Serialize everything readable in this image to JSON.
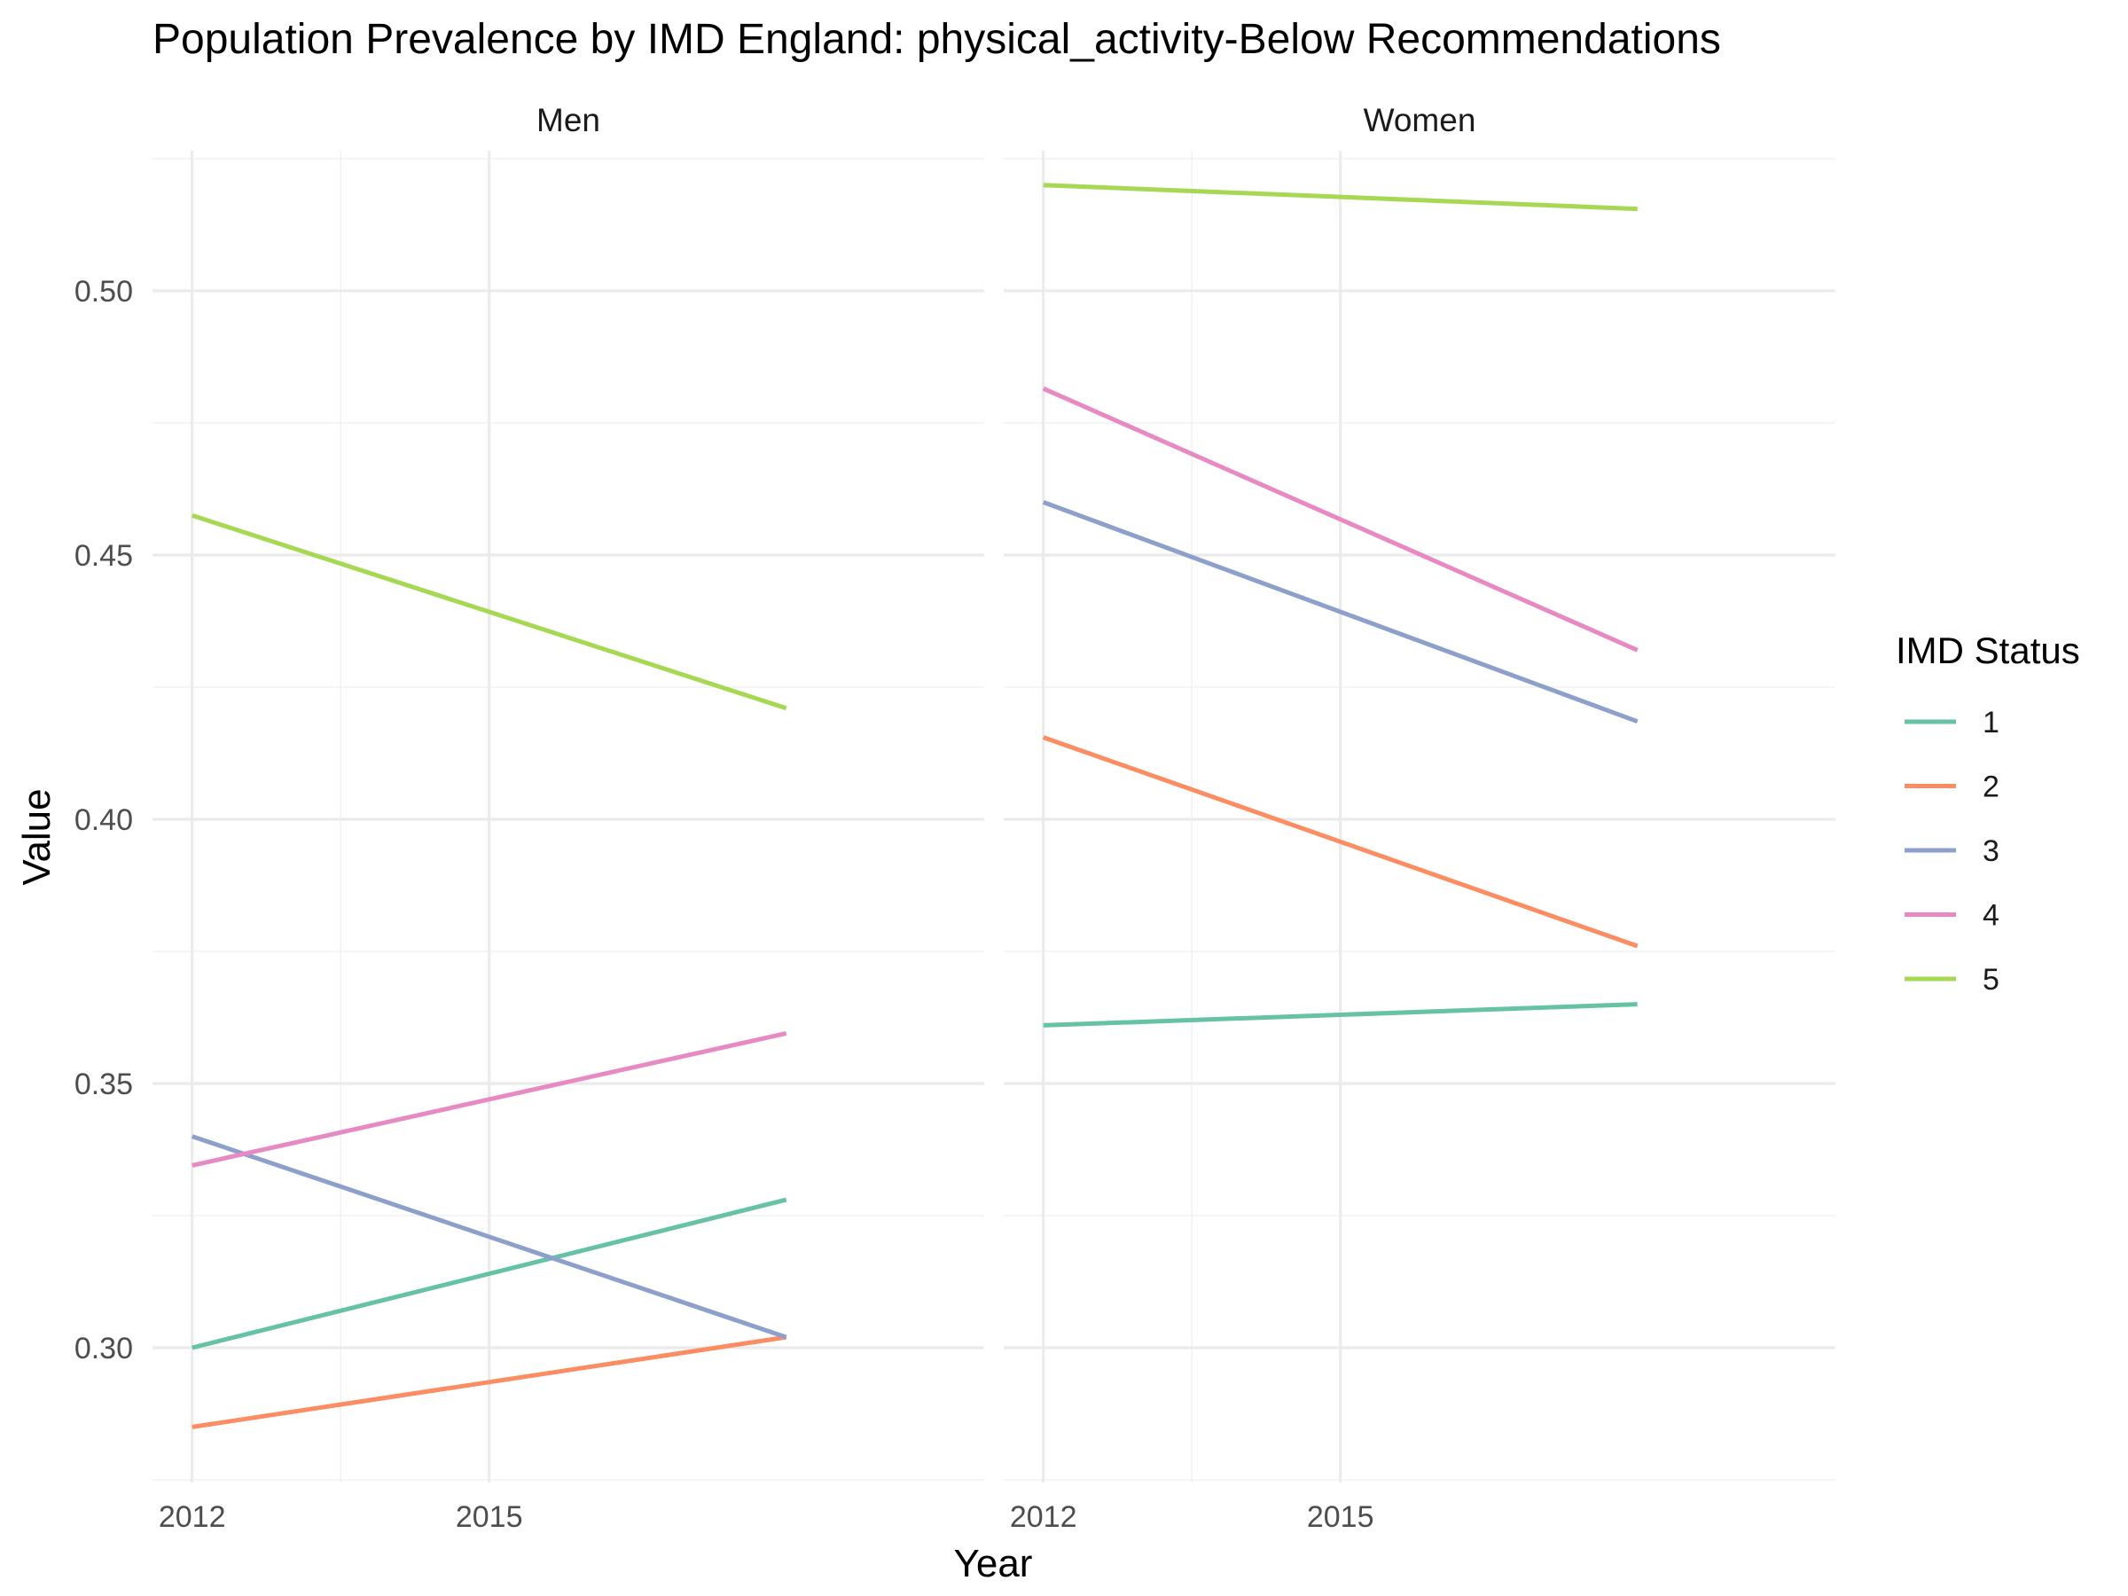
{
  "chart_data": {
    "type": "line",
    "title": "Population Prevalence by IMD England: physical_activity-Below Recommendations",
    "xlabel": "Year",
    "ylabel": "Value",
    "x_ticks": [
      "2012",
      "2015"
    ],
    "y_ticks": [
      "0.30",
      "0.35",
      "0.40",
      "0.45",
      "0.50"
    ],
    "xlim": [
      2011.6,
      2020.0
    ],
    "ylim": [
      0.2745,
      0.5265
    ],
    "grid": true,
    "legend": {
      "title": "IMD Status",
      "position": "right"
    },
    "panels": [
      {
        "name": "Men",
        "series": [
          {
            "name": "1",
            "color": "#66c2a5",
            "x": [
              2012,
              2018
            ],
            "y": [
              0.3,
              0.328
            ]
          },
          {
            "name": "2",
            "color": "#fc8d62",
            "x": [
              2012,
              2018
            ],
            "y": [
              0.285,
              0.302
            ]
          },
          {
            "name": "3",
            "color": "#8da0cb",
            "x": [
              2012,
              2018
            ],
            "y": [
              0.34,
              0.302
            ]
          },
          {
            "name": "4",
            "color": "#e78ac3",
            "x": [
              2012,
              2018
            ],
            "y": [
              0.3345,
              0.3595
            ]
          },
          {
            "name": "5",
            "color": "#a6d854",
            "x": [
              2012,
              2018
            ],
            "y": [
              0.4575,
              0.421
            ]
          }
        ]
      },
      {
        "name": "Women",
        "series": [
          {
            "name": "1",
            "color": "#66c2a5",
            "x": [
              2012,
              2018
            ],
            "y": [
              0.361,
              0.365
            ]
          },
          {
            "name": "2",
            "color": "#fc8d62",
            "x": [
              2012,
              2018
            ],
            "y": [
              0.4155,
              0.376
            ]
          },
          {
            "name": "3",
            "color": "#8da0cb",
            "x": [
              2012,
              2018
            ],
            "y": [
              0.46,
              0.4185
            ]
          },
          {
            "name": "4",
            "color": "#e78ac3",
            "x": [
              2012,
              2018
            ],
            "y": [
              0.4815,
              0.432
            ]
          },
          {
            "name": "5",
            "color": "#a6d854",
            "x": [
              2012,
              2018
            ],
            "y": [
              0.52,
              0.5155
            ]
          }
        ]
      }
    ]
  }
}
